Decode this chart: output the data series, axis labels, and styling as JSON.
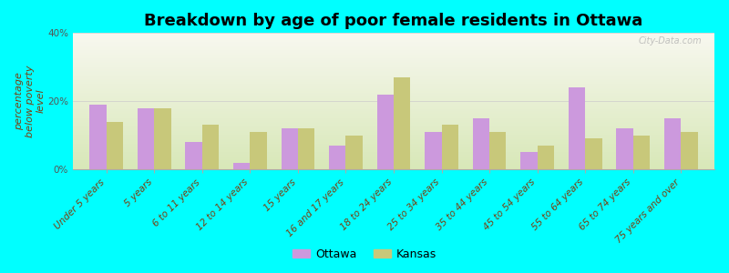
{
  "title": "Breakdown by age of poor female residents in Ottawa",
  "ylabel": "percentage\nbelow poverty\nlevel",
  "categories": [
    "Under 5 years",
    "5 years",
    "6 to 11 years",
    "12 to 14 years",
    "15 years",
    "16 and 17 years",
    "18 to 24 years",
    "25 to 34 years",
    "35 to 44 years",
    "45 to 54 years",
    "55 to 64 years",
    "65 to 74 years",
    "75 years and over"
  ],
  "ottawa_values": [
    19,
    18,
    8,
    2,
    12,
    7,
    22,
    11,
    15,
    5,
    24,
    12,
    15
  ],
  "kansas_values": [
    14,
    18,
    13,
    11,
    12,
    10,
    27,
    13,
    11,
    7,
    9,
    10,
    11
  ],
  "ottawa_color": "#cc99dd",
  "kansas_color": "#c8c87a",
  "background_color": "#00ffff",
  "grad_top": "#f8f8f0",
  "grad_bottom": "#d8e8b8",
  "ylim": [
    0,
    40
  ],
  "yticks": [
    0,
    20,
    40
  ],
  "ytick_labels": [
    "0%",
    "20%",
    "40%"
  ],
  "legend_labels": [
    "Ottawa",
    "Kansas"
  ],
  "title_fontsize": 13,
  "axis_label_fontsize": 8,
  "tick_fontsize": 7.5,
  "watermark": "City-Data.com"
}
